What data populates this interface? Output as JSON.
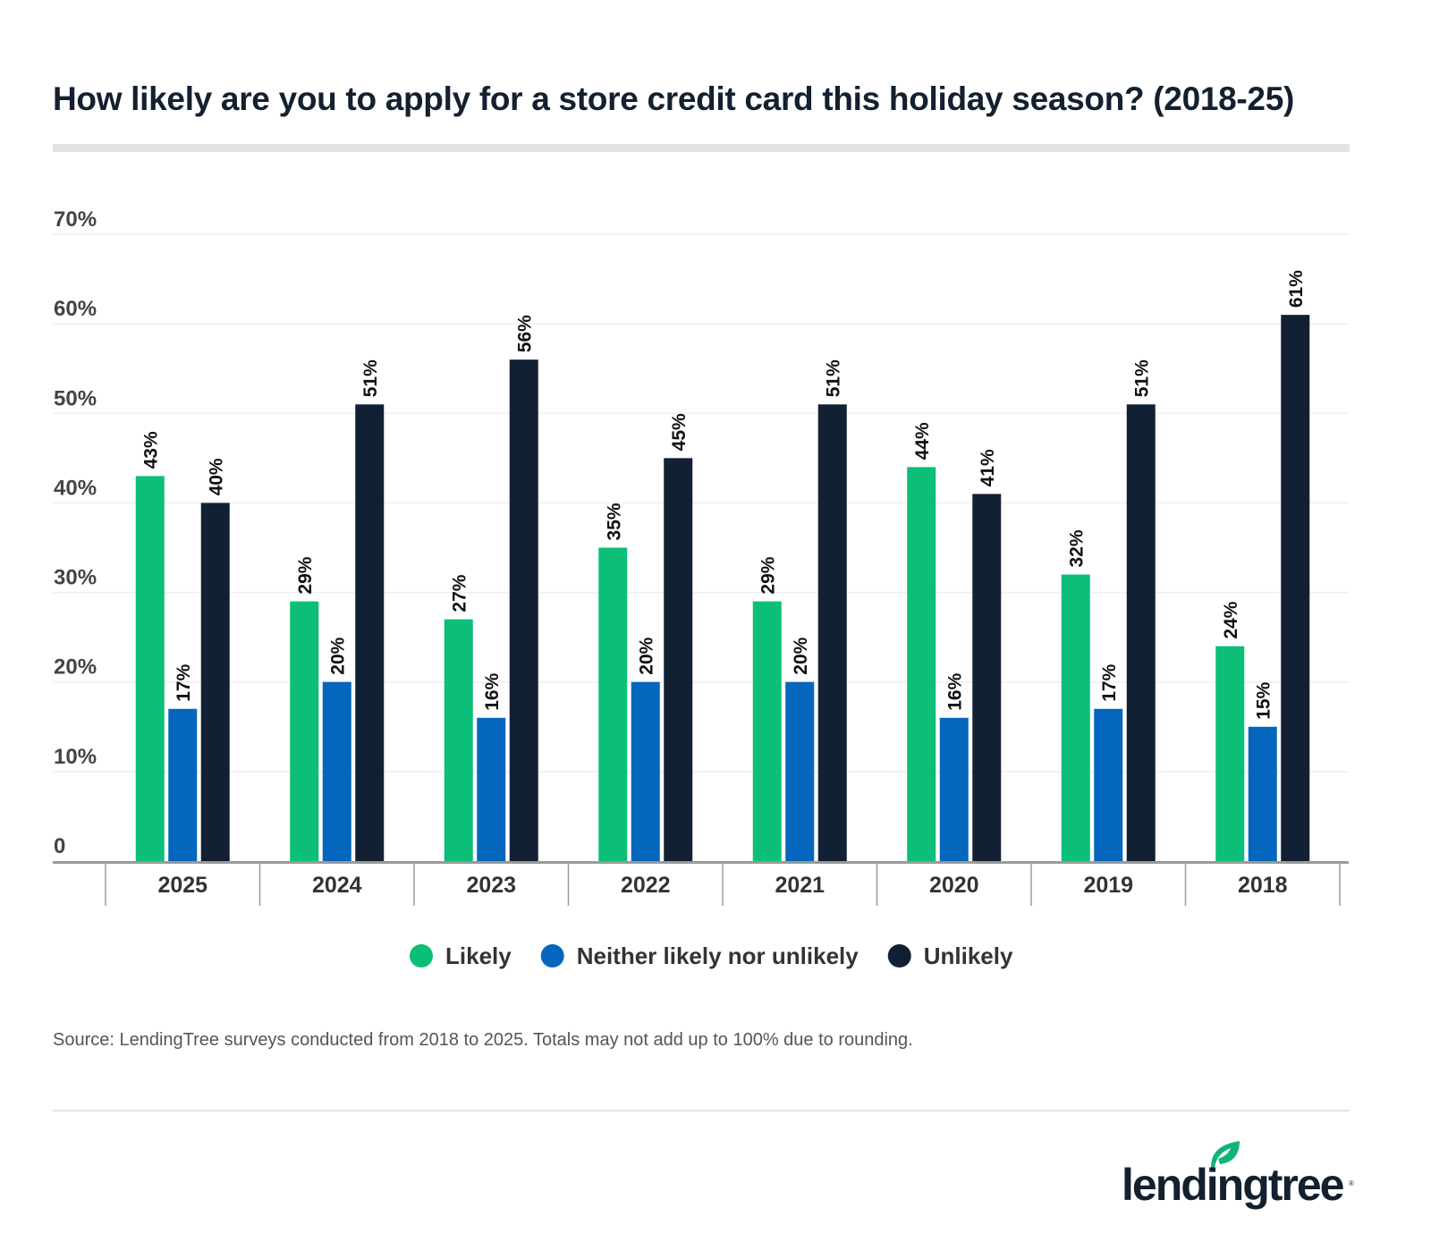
{
  "title": "How likely are you to apply for a store credit card this holiday season? (2018-25)",
  "source": "Source: LendingTree surveys conducted from 2018 to 2025. Totals may not add up to 100% due to rounding.",
  "logo": {
    "text": "lendingtree",
    "colors": {
      "text": "#13202f",
      "leaf": "#0fb574"
    }
  },
  "chart_data": {
    "type": "bar",
    "title": "How likely are you to apply for a store credit card this holiday season? (2018-25)",
    "xlabel": "",
    "ylabel": "",
    "ylim": [
      0,
      70
    ],
    "yticks": [
      0,
      10,
      20,
      30,
      40,
      50,
      60,
      70
    ],
    "ytick_labels": [
      "0",
      "10%",
      "20%",
      "30%",
      "40%",
      "50%",
      "60%",
      "70%"
    ],
    "grid": true,
    "legend_position": "bottom",
    "categories": [
      "2025",
      "2024",
      "2023",
      "2022",
      "2021",
      "2020",
      "2019",
      "2018"
    ],
    "series": [
      {
        "name": "Likely",
        "color": "#0bbf78",
        "values": [
          43,
          29,
          27,
          35,
          29,
          44,
          32,
          24
        ]
      },
      {
        "name": "Neither likely nor unlikely",
        "color": "#0467bd",
        "values": [
          17,
          20,
          16,
          20,
          20,
          16,
          17,
          15
        ]
      },
      {
        "name": "Unlikely",
        "color": "#122033",
        "values": [
          40,
          51,
          56,
          45,
          51,
          41,
          51,
          61
        ]
      }
    ]
  }
}
